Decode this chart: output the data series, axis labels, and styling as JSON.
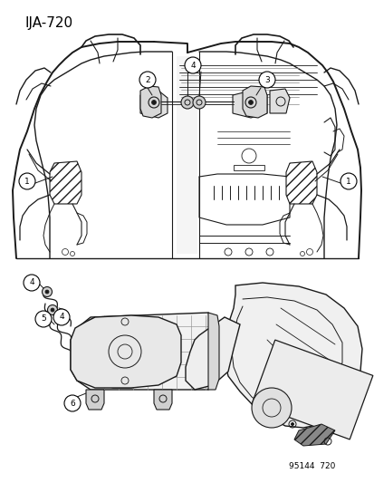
{
  "title": "IJA-720",
  "part_number": "95144  720",
  "bg_color": "#ffffff",
  "line_color": "#1a1a1a",
  "fig_width": 4.14,
  "fig_height": 5.33,
  "dpi": 100,
  "title_fontsize": 11,
  "title_weight": "normal"
}
